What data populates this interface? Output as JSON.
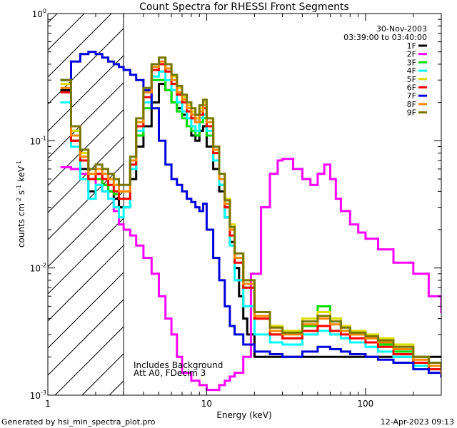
{
  "chart_data": {
    "type": "line",
    "title": "Count Spectra for RHESSI Front Segments",
    "xlabel": "Energy (keV)",
    "ylabel_parts": [
      "counts cm",
      "-2",
      " s",
      "-1",
      " keV",
      "-1"
    ],
    "xscale": "log",
    "yscale": "log",
    "xlim": [
      1,
      300
    ],
    "ylim": [
      0.001,
      1
    ],
    "x_ticks": [
      {
        "value": 1,
        "label": "1"
      },
      {
        "value": 10,
        "label": "10"
      },
      {
        "value": 100,
        "label": "100"
      }
    ],
    "y_ticks": [
      {
        "value": 0.001,
        "base": "10",
        "exp": "-3"
      },
      {
        "value": 0.01,
        "base": "10",
        "exp": "-2"
      },
      {
        "value": 0.1,
        "base": "10",
        "exp": "-1"
      },
      {
        "value": 1,
        "base": "10",
        "exp": "0"
      }
    ],
    "hatched_region_x": [
      1,
      3
    ],
    "date": "30-Nov-2003",
    "time_range": "03:39:00 to 03:40:00",
    "annotations": [
      "Includes Background",
      "Att A0, FDecim 3"
    ],
    "legend_position": "top-right",
    "series": [
      {
        "name": "1F",
        "color": "#000000",
        "x": [
          1.2,
          1.4,
          1.6,
          1.8,
          2,
          2.2,
          2.4,
          2.6,
          2.8,
          3,
          3.3,
          3.6,
          4,
          4.5,
          5,
          5.5,
          6,
          6.5,
          7,
          7.5,
          8,
          8.5,
          9,
          9.5,
          10,
          11,
          12,
          13,
          14,
          15,
          16,
          17,
          18,
          20
        ],
        "y": [
          0.25,
          0.1,
          0.06,
          0.04,
          0.055,
          0.045,
          0.04,
          0.035,
          0.03,
          0.03,
          0.05,
          0.09,
          0.13,
          0.2,
          0.28,
          0.25,
          0.2,
          0.18,
          0.16,
          0.13,
          0.11,
          0.1,
          0.12,
          0.13,
          0.09,
          0.06,
          0.04,
          0.025,
          0.016,
          0.01,
          0.006,
          0.004,
          0.003,
          0.002
        ]
      },
      {
        "name": "2F",
        "color": "#ff00ff",
        "x": [
          1.2,
          1.4,
          1.6,
          1.8,
          2,
          2.2,
          2.4,
          2.6,
          2.8,
          3,
          3.3,
          3.6,
          4,
          4.5,
          5,
          5.5,
          6,
          6.5,
          7,
          8,
          9,
          10,
          11,
          12,
          13,
          14,
          15,
          17,
          19,
          22,
          25,
          28,
          30,
          35,
          40,
          45,
          50,
          55,
          60,
          65,
          70,
          80,
          90,
          100,
          120,
          150,
          200,
          250,
          300
        ],
        "y": [
          0.062,
          0.06,
          0.055,
          0.05,
          0.045,
          0.04,
          0.035,
          0.028,
          0.022,
          0.02,
          0.018,
          0.015,
          0.012,
          0.009,
          0.006,
          0.004,
          0.003,
          0.002,
          0.0015,
          0.0013,
          0.0012,
          0.0011,
          0.0011,
          0.0012,
          0.0013,
          0.0014,
          0.0015,
          0.002,
          0.009,
          0.03,
          0.055,
          0.07,
          0.072,
          0.06,
          0.05,
          0.045,
          0.055,
          0.065,
          0.05,
          0.035,
          0.028,
          0.022,
          0.019,
          0.017,
          0.014,
          0.011,
          0.009,
          0.006,
          0.0045
        ]
      },
      {
        "name": "3F",
        "color": "#00dd00",
        "x": [
          1.2,
          1.4,
          1.6,
          1.8,
          2,
          2.2,
          2.4,
          2.6,
          2.8,
          3,
          3.3,
          3.6,
          4,
          4.5,
          5,
          5.5,
          6,
          6.5,
          7,
          7.5,
          8,
          8.5,
          9,
          9.5,
          10,
          11,
          12,
          13,
          14,
          15,
          17,
          20,
          25,
          30,
          40,
          50,
          60,
          70,
          80,
          100,
          120,
          150,
          200,
          250,
          300
        ],
        "y": [
          0.3,
          0.12,
          0.07,
          0.05,
          0.05,
          0.045,
          0.04,
          0.038,
          0.035,
          0.035,
          0.06,
          0.11,
          0.18,
          0.3,
          0.3,
          0.25,
          0.2,
          0.17,
          0.15,
          0.13,
          0.12,
          0.11,
          0.14,
          0.15,
          0.11,
          0.07,
          0.045,
          0.03,
          0.02,
          0.012,
          0.007,
          0.004,
          0.003,
          0.0028,
          0.0035,
          0.005,
          0.004,
          0.0032,
          0.003,
          0.0028,
          0.0025,
          0.0022,
          0.0018,
          0.0016,
          0.0015
        ]
      },
      {
        "name": "4F",
        "color": "#00ffff",
        "x": [
          1.2,
          1.4,
          1.6,
          1.8,
          2,
          2.2,
          2.4,
          2.6,
          2.8,
          3,
          3.3,
          3.6,
          4,
          4.5,
          5,
          5.5,
          6,
          6.5,
          7,
          7.5,
          8,
          8.5,
          9,
          9.5,
          10,
          11,
          12,
          13,
          14,
          15,
          17,
          20,
          25,
          30,
          40,
          50,
          60,
          70,
          80,
          100,
          120,
          150,
          200,
          250,
          300
        ],
        "y": [
          0.2,
          0.09,
          0.05,
          0.035,
          0.045,
          0.04,
          0.035,
          0.03,
          0.025,
          0.03,
          0.06,
          0.12,
          0.2,
          0.32,
          0.35,
          0.3,
          0.25,
          0.2,
          0.17,
          0.15,
          0.13,
          0.12,
          0.15,
          0.16,
          0.12,
          0.07,
          0.045,
          0.025,
          0.015,
          0.008,
          0.005,
          0.003,
          0.0026,
          0.0025,
          0.003,
          0.0032,
          0.003,
          0.0028,
          0.0026,
          0.0024,
          0.0022,
          0.002,
          0.0017,
          0.0015,
          0.0014
        ]
      },
      {
        "name": "5F",
        "color": "#dddd00",
        "x": [
          1.2,
          1.4,
          1.6,
          1.8,
          2,
          2.2,
          2.4,
          2.6,
          2.8,
          3,
          3.3,
          3.6,
          4,
          4.5,
          5,
          5.5,
          6,
          6.5,
          7,
          7.5,
          8,
          8.5,
          9,
          9.5,
          10,
          11,
          12,
          13,
          14,
          15,
          17,
          20,
          25,
          30,
          40,
          50,
          60,
          70,
          80,
          100,
          120,
          150,
          200,
          250,
          300
        ],
        "y": [
          0.28,
          0.12,
          0.08,
          0.055,
          0.06,
          0.055,
          0.05,
          0.045,
          0.04,
          0.04,
          0.07,
          0.14,
          0.25,
          0.4,
          0.45,
          0.4,
          0.32,
          0.26,
          0.22,
          0.19,
          0.17,
          0.15,
          0.18,
          0.2,
          0.15,
          0.09,
          0.055,
          0.035,
          0.022,
          0.013,
          0.008,
          0.0045,
          0.0035,
          0.0032,
          0.004,
          0.0045,
          0.004,
          0.0035,
          0.0032,
          0.003,
          0.0028,
          0.0025,
          0.002,
          0.0018,
          0.0016
        ]
      },
      {
        "name": "6F",
        "color": "#ff0000",
        "x": [
          1.2,
          1.4,
          1.6,
          1.8,
          2,
          2.2,
          2.4,
          2.6,
          2.8,
          3,
          3.3,
          3.6,
          4,
          4.5,
          5,
          5.5,
          6,
          6.5,
          7,
          7.5,
          8,
          8.5,
          9,
          9.5,
          10,
          11,
          12,
          13,
          14,
          15,
          17,
          20,
          25,
          30,
          40,
          50,
          60,
          70,
          80,
          100,
          120,
          150,
          200,
          250,
          300
        ],
        "y": [
          0.24,
          0.1,
          0.07,
          0.05,
          0.055,
          0.05,
          0.045,
          0.04,
          0.035,
          0.035,
          0.065,
          0.13,
          0.22,
          0.36,
          0.4,
          0.35,
          0.28,
          0.23,
          0.2,
          0.17,
          0.15,
          0.14,
          0.16,
          0.18,
          0.13,
          0.08,
          0.05,
          0.03,
          0.018,
          0.011,
          0.007,
          0.004,
          0.003,
          0.0028,
          0.0032,
          0.0035,
          0.0032,
          0.003,
          0.0028,
          0.0026,
          0.0024,
          0.0021,
          0.0018,
          0.0016,
          0.0014
        ]
      },
      {
        "name": "7F",
        "color": "#0000dd",
        "x": [
          1.2,
          1.4,
          1.6,
          1.8,
          2,
          2.2,
          2.4,
          2.6,
          2.8,
          3,
          3.3,
          3.6,
          4,
          4.5,
          5,
          5.5,
          6,
          6.5,
          7,
          7.5,
          8,
          8.5,
          9,
          9.5,
          10,
          11,
          12,
          13,
          14,
          15,
          17,
          20,
          25,
          30,
          40,
          50,
          60,
          70,
          80,
          100,
          120,
          150,
          200,
          250,
          300
        ],
        "y": [
          0.3,
          0.42,
          0.48,
          0.5,
          0.48,
          0.45,
          0.42,
          0.4,
          0.38,
          0.36,
          0.33,
          0.3,
          0.25,
          0.18,
          0.1,
          0.065,
          0.05,
          0.045,
          0.04,
          0.035,
          0.033,
          0.03,
          0.028,
          0.032,
          0.02,
          0.012,
          0.008,
          0.005,
          0.0035,
          0.003,
          0.0025,
          0.0022,
          0.0021,
          0.002,
          0.0022,
          0.0024,
          0.0023,
          0.0022,
          0.0021,
          0.002,
          0.0019,
          0.0018,
          0.0016,
          0.0015,
          0.0014
        ]
      },
      {
        "name": "8F",
        "color": "#ff8800",
        "x": [
          1.2,
          1.4,
          1.6,
          1.8,
          2,
          2.2,
          2.4,
          2.6,
          2.8,
          3,
          3.3,
          3.6,
          4,
          4.5,
          5,
          5.5,
          6,
          6.5,
          7,
          7.5,
          8,
          8.5,
          9,
          9.5,
          10,
          11,
          12,
          13,
          14,
          15,
          17,
          20,
          25,
          30,
          40,
          50,
          60,
          70,
          80,
          100,
          120,
          150,
          200,
          250,
          300
        ],
        "y": [
          0.26,
          0.11,
          0.075,
          0.055,
          0.06,
          0.055,
          0.05,
          0.045,
          0.04,
          0.04,
          0.07,
          0.14,
          0.24,
          0.38,
          0.42,
          0.37,
          0.3,
          0.24,
          0.21,
          0.18,
          0.16,
          0.14,
          0.17,
          0.19,
          0.14,
          0.085,
          0.05,
          0.032,
          0.02,
          0.012,
          0.0075,
          0.0042,
          0.0032,
          0.003,
          0.0036,
          0.004,
          0.0036,
          0.0032,
          0.003,
          0.0028,
          0.0026,
          0.0023,
          0.0019,
          0.0017,
          0.0015
        ]
      },
      {
        "name": "9F",
        "color": "#777700",
        "x": [
          1.2,
          1.4,
          1.6,
          1.8,
          2,
          2.2,
          2.4,
          2.6,
          2.8,
          3,
          3.3,
          3.6,
          4,
          4.5,
          5,
          5.5,
          6,
          6.5,
          7,
          7.5,
          8,
          8.5,
          9,
          9.5,
          10,
          11,
          12,
          13,
          14,
          15,
          17,
          20,
          25,
          30,
          40,
          50,
          60,
          70,
          80,
          100,
          120,
          150,
          200,
          250,
          300
        ],
        "y": [
          0.3,
          0.13,
          0.085,
          0.06,
          0.065,
          0.06,
          0.055,
          0.05,
          0.045,
          0.045,
          0.075,
          0.15,
          0.26,
          0.4,
          0.45,
          0.4,
          0.33,
          0.27,
          0.23,
          0.2,
          0.18,
          0.16,
          0.19,
          0.21,
          0.15,
          0.09,
          0.055,
          0.034,
          0.021,
          0.013,
          0.008,
          0.0045,
          0.0034,
          0.0031,
          0.0038,
          0.0042,
          0.0038,
          0.0034,
          0.0031,
          0.0029,
          0.0027,
          0.0024,
          0.002,
          0.0018,
          0.0016
        ]
      }
    ]
  },
  "footer": {
    "generated_by": "Generated by hsi_min_spectra_plot.pro",
    "timestamp": "12-Apr-2023 09:13"
  }
}
